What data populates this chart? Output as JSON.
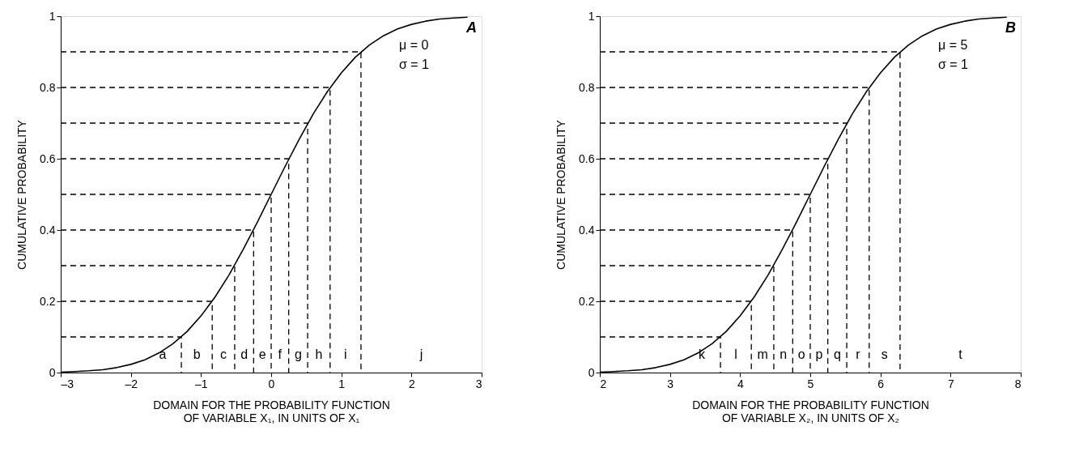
{
  "chart_data": [
    {
      "type": "line",
      "xlabel": "DOMAIN FOR THE PROBABILITY FUNCTION\nOF VARIABLE X₁, IN UNITS OF X₁",
      "ylabel": "CUMULATIVE PROBABILITY",
      "xlim": [
        -3,
        3
      ],
      "ylim": [
        0,
        1
      ],
      "xticks": [
        {
          "value": -3,
          "label": "–3"
        },
        {
          "value": -2,
          "label": "–2"
        },
        {
          "value": -1,
          "label": "–1"
        },
        0,
        1,
        2,
        3
      ],
      "yticks": [
        0,
        0.2,
        0.4,
        0.6,
        0.8,
        1
      ],
      "grid": false,
      "marker": "none",
      "x": [
        -3.0,
        -2.8,
        -2.6,
        -2.4,
        -2.2,
        -2.0,
        -1.8,
        -1.6,
        -1.4,
        -1.2,
        -1.0,
        -0.8,
        -0.6,
        -0.4,
        -0.2,
        0.0,
        0.2,
        0.4,
        0.6,
        0.8,
        1.0,
        1.2,
        1.4,
        1.6,
        1.8,
        2.0,
        2.2,
        2.4,
        2.6,
        2.8
      ],
      "series": [
        {
          "color": "#000000",
          "line_style": "solid",
          "values": [
            0.001,
            0.003,
            0.005,
            0.008,
            0.014,
            0.023,
            0.036,
            0.055,
            0.081,
            0.115,
            0.159,
            0.212,
            0.274,
            0.345,
            0.421,
            0.5,
            0.579,
            0.655,
            0.726,
            0.788,
            0.841,
            0.885,
            0.919,
            0.945,
            0.964,
            0.977,
            0.986,
            0.992,
            0.995,
            0.997
          ]
        },
        {
          "color": "#000000",
          "line_style": "dashed",
          "x": [
            -3,
            -1.28,
            -1.28
          ],
          "values": [
            0.1,
            0.1,
            0
          ]
        },
        {
          "color": "#000000",
          "line_style": "dashed",
          "x": [
            -3,
            -0.84,
            -0.84
          ],
          "values": [
            0.2,
            0.2,
            0
          ]
        },
        {
          "color": "#000000",
          "line_style": "dashed",
          "x": [
            -3,
            -0.52,
            -0.52
          ],
          "values": [
            0.3,
            0.3,
            0
          ]
        },
        {
          "color": "#000000",
          "line_style": "dashed",
          "x": [
            -3,
            -0.25,
            -0.25
          ],
          "values": [
            0.4,
            0.4,
            0
          ]
        },
        {
          "color": "#000000",
          "line_style": "dashed",
          "x": [
            -3,
            0,
            0
          ],
          "values": [
            0.5,
            0.5,
            0
          ]
        },
        {
          "color": "#000000",
          "line_style": "dashed",
          "x": [
            -3,
            0.25,
            0.25
          ],
          "values": [
            0.6,
            0.6,
            0
          ]
        },
        {
          "color": "#000000",
          "line_style": "dashed",
          "x": [
            -3,
            0.52,
            0.52
          ],
          "values": [
            0.7,
            0.7,
            0
          ]
        },
        {
          "color": "#000000",
          "line_style": "dashed",
          "x": [
            -3,
            0.84,
            0.84
          ],
          "values": [
            0.8,
            0.8,
            0
          ]
        },
        {
          "color": "#000000",
          "line_style": "dashed",
          "x": [
            -3,
            1.28,
            1.28
          ],
          "values": [
            0.9,
            0.9,
            0
          ]
        }
      ],
      "annotations": [
        "A",
        "μ = 0",
        "σ = 1",
        "a",
        "b",
        "c",
        "d",
        "e",
        "f",
        "g",
        "h",
        "i",
        "j"
      ]
    },
    {
      "type": "line",
      "xlabel": "DOMAIN FOR THE PROBABILITY FUNCTION\nOF VARIABLE X₂, IN UNITS OF X₂",
      "ylabel": "CUMULATIVE PROBABILITY",
      "xlim": [
        2,
        8
      ],
      "ylim": [
        0,
        1
      ],
      "xticks": [
        2,
        3,
        4,
        5,
        6,
        7,
        8
      ],
      "yticks": [
        0,
        0.2,
        0.4,
        0.6,
        0.8,
        1
      ],
      "grid": false,
      "marker": "none",
      "x": [
        2.0,
        2.2,
        2.4,
        2.6,
        2.8,
        3.0,
        3.2,
        3.4,
        3.6,
        3.8,
        4.0,
        4.2,
        4.4,
        4.6,
        4.8,
        5.0,
        5.2,
        5.4,
        5.6,
        5.8,
        6.0,
        6.2,
        6.4,
        6.6,
        6.8,
        7.0,
        7.2,
        7.4,
        7.6,
        7.8
      ],
      "series": [
        {
          "color": "#000000",
          "line_style": "solid",
          "values": [
            0.001,
            0.003,
            0.005,
            0.008,
            0.014,
            0.023,
            0.036,
            0.055,
            0.081,
            0.115,
            0.159,
            0.212,
            0.274,
            0.345,
            0.421,
            0.5,
            0.579,
            0.655,
            0.726,
            0.788,
            0.841,
            0.885,
            0.919,
            0.945,
            0.964,
            0.977,
            0.986,
            0.992,
            0.995,
            0.997
          ]
        },
        {
          "color": "#000000",
          "line_style": "dashed",
          "x": [
            2,
            3.72,
            3.72
          ],
          "values": [
            0.1,
            0.1,
            0
          ]
        },
        {
          "color": "#000000",
          "line_style": "dashed",
          "x": [
            2,
            4.16,
            4.16
          ],
          "values": [
            0.2,
            0.2,
            0
          ]
        },
        {
          "color": "#000000",
          "line_style": "dashed",
          "x": [
            2,
            4.48,
            4.48
          ],
          "values": [
            0.3,
            0.3,
            0
          ]
        },
        {
          "color": "#000000",
          "line_style": "dashed",
          "x": [
            2,
            4.75,
            4.75
          ],
          "values": [
            0.4,
            0.4,
            0
          ]
        },
        {
          "color": "#000000",
          "line_style": "dashed",
          "x": [
            2,
            5,
            5
          ],
          "values": [
            0.5,
            0.5,
            0
          ]
        },
        {
          "color": "#000000",
          "line_style": "dashed",
          "x": [
            2,
            5.25,
            5.25
          ],
          "values": [
            0.6,
            0.6,
            0
          ]
        },
        {
          "color": "#000000",
          "line_style": "dashed",
          "x": [
            2,
            5.52,
            5.52
          ],
          "values": [
            0.7,
            0.7,
            0
          ]
        },
        {
          "color": "#000000",
          "line_style": "dashed",
          "x": [
            2,
            5.84,
            5.84
          ],
          "values": [
            0.8,
            0.8,
            0
          ]
        },
        {
          "color": "#000000",
          "line_style": "dashed",
          "x": [
            2,
            6.28,
            6.28
          ],
          "values": [
            0.9,
            0.9,
            0
          ]
        }
      ],
      "annotations": [
        "B",
        "μ = 5",
        "σ = 1",
        "k",
        "l",
        "m",
        "n",
        "o",
        "p",
        "q",
        "r",
        "s",
        "t"
      ]
    }
  ]
}
